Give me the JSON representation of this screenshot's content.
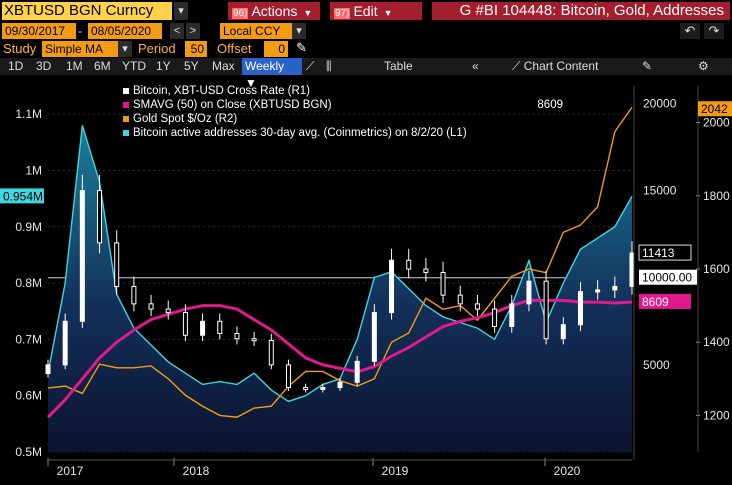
{
  "header": {
    "ticker": "XBTUSD BGN Curncy",
    "actions_num": "96)",
    "actions_label": "Actions",
    "edit_num": "97)",
    "edit_label": "Edit",
    "chart_title": "G #BI 104448: Bitcoin, Gold, Addresses"
  },
  "daterow": {
    "start_date": "09/30/2017",
    "end_date": "08/05/2020",
    "currency": "Local CCY"
  },
  "study": {
    "label": "Study",
    "type": "Simple MA",
    "period_label": "Period",
    "period_value": "50",
    "offset_label": "Offset",
    "offset_value": "0"
  },
  "toolbar": {
    "ranges": [
      "1D",
      "3D",
      "1M",
      "6M",
      "YTD",
      "1Y",
      "5Y",
      "Max"
    ],
    "frequency": "Weekly",
    "table_label": "Table",
    "chart_content_label": "Chart Content"
  },
  "legend": [
    {
      "text": "Bitcoin, XBT-USD Cross Rate  (R1)",
      "color": "#ffffff"
    },
    {
      "text": "SMAVG (50)  on Close (XBTUSD BGN)",
      "color": "#e0198c",
      "value": "8609"
    },
    {
      "text": "Gold Spot $/Oz  (R2)",
      "color": "#f39c12"
    },
    {
      "text": "Bitcoin active addresses 30-day avg. (Coinmetrics) on 8/2/20  (L1)",
      "color": "#3fd6e0"
    }
  ],
  "axes": {
    "left_ticks": [
      "1.1M",
      "1M",
      "0.9M",
      "0.8M",
      "0.7M",
      "0.6M",
      "0.5M"
    ],
    "left_badge": "0.954M",
    "right1_ticks": [
      "20000",
      "15000",
      "10000",
      "5000"
    ],
    "right2_ticks": [
      "2000",
      "1800",
      "1600",
      "1400",
      "1200"
    ],
    "x_ticks": [
      "2017",
      "2018",
      "2019",
      "2020"
    ],
    "badges": {
      "gold": "2042",
      "btc_last": "11413",
      "ref": "10000.00",
      "sma": "8609"
    }
  },
  "colors": {
    "gold": "#f39c12",
    "sma": "#e0198c",
    "addresses": "#3fd6e0",
    "btc": "#ffffff",
    "accent_red": "#a51e2d",
    "ticker_bg": "#ffd24a"
  },
  "chart_data": {
    "type": "line",
    "x": [
      "2017-10",
      "2017-11",
      "2017-12",
      "2018-01",
      "2018-02",
      "2018-03",
      "2018-04",
      "2018-05",
      "2018-06",
      "2018-07",
      "2018-08",
      "2018-09",
      "2018-10",
      "2018-11",
      "2018-12",
      "2019-01",
      "2019-02",
      "2019-03",
      "2019-04",
      "2019-05",
      "2019-06",
      "2019-07",
      "2019-08",
      "2019-09",
      "2019-10",
      "2019-11",
      "2019-12",
      "2020-01",
      "2020-02",
      "2020-03",
      "2020-04",
      "2020-05",
      "2020-06",
      "2020-07",
      "2020-08"
    ],
    "series": [
      {
        "name": "Bitcoin, XBT-USD Cross Rate",
        "axis": "R1",
        "values": [
          5000,
          7500,
          15000,
          12000,
          9500,
          8500,
          8200,
          8000,
          6700,
          7500,
          6800,
          6500,
          6400,
          5000,
          3700,
          3600,
          3700,
          4000,
          5200,
          8000,
          11000,
          10500,
          10300,
          9000,
          8500,
          8200,
          7200,
          8500,
          9800,
          6500,
          7300,
          9200,
          9300,
          9500,
          11413
        ]
      },
      {
        "name": "SMAVG (50) on Close (XBTUSD BGN)",
        "axis": "R1",
        "values": [
          2000,
          3000,
          4200,
          5400,
          6300,
          7000,
          7600,
          7900,
          8200,
          8400,
          8400,
          8200,
          7600,
          7000,
          6200,
          5400,
          5000,
          4800,
          4600,
          4900,
          5500,
          6000,
          6600,
          7200,
          7500,
          7700,
          8000,
          8400,
          8700,
          8700,
          8700,
          8600,
          8600,
          8550,
          8609
        ]
      },
      {
        "name": "Gold Spot $/Oz",
        "axis": "R2",
        "values": [
          1275,
          1280,
          1260,
          1340,
          1330,
          1330,
          1335,
          1300,
          1255,
          1225,
          1200,
          1195,
          1220,
          1225,
          1280,
          1320,
          1320,
          1295,
          1280,
          1300,
          1400,
          1425,
          1520,
          1490,
          1500,
          1460,
          1520,
          1580,
          1600,
          1590,
          1700,
          1720,
          1770,
          1975,
          2042
        ]
      },
      {
        "name": "Bitcoin active addresses 30-day avg. (Coinmetrics)",
        "axis": "L1",
        "values": [
          640000,
          800000,
          1080000,
          980000,
          780000,
          720000,
          690000,
          660000,
          640000,
          620000,
          625000,
          620000,
          640000,
          610000,
          590000,
          600000,
          620000,
          630000,
          700000,
          810000,
          820000,
          790000,
          760000,
          740000,
          730000,
          720000,
          700000,
          760000,
          840000,
          730000,
          800000,
          860000,
          880000,
          900000,
          954000
        ]
      }
    ],
    "ylim_left": [
      500000,
      1150000
    ],
    "ylim_right1": [
      0,
      21000
    ],
    "ylim_right2": [
      1100,
      2100
    ],
    "reference_line_r1": 10000,
    "grid": true,
    "legend_position": "top-left"
  }
}
